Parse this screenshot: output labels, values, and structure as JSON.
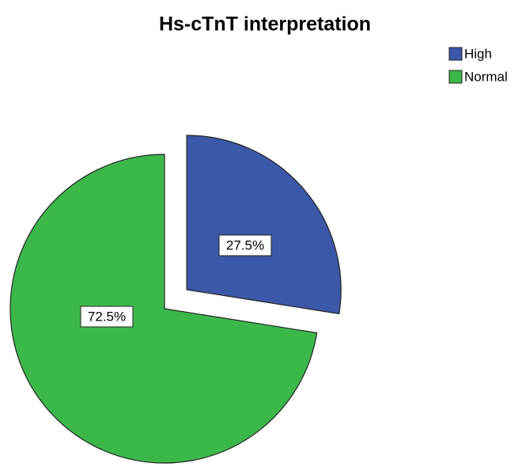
{
  "chart_data": {
    "type": "pie",
    "title": "Hs-cTnT interpretation",
    "categories": [
      "High",
      "Normal"
    ],
    "values": [
      27.5,
      72.5
    ],
    "value_labels": [
      "27.5%",
      "72.5%"
    ],
    "colors": [
      "#3c58a8",
      "#3cb84a"
    ],
    "explode": [
      true,
      false
    ],
    "legend": "top-right"
  }
}
